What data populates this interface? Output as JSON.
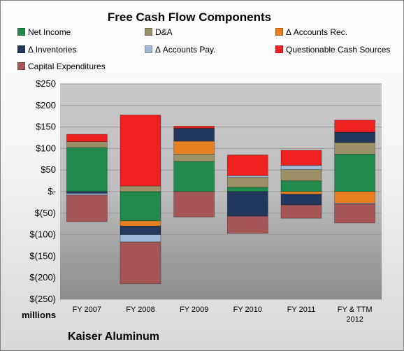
{
  "chart_data": {
    "type": "bar",
    "stacked": true,
    "title": "Free Cash Flow Components",
    "units_label": "millions",
    "footer": "Kaiser Aluminum",
    "ylim": [
      -250,
      250
    ],
    "ytick_values": [
      250,
      200,
      150,
      100,
      50,
      0,
      -50,
      -100,
      -150,
      -200,
      -250
    ],
    "ytick_labels": [
      "$250",
      "$200",
      "$150",
      "$100",
      "$50",
      "$-",
      "$(50)",
      "$(100)",
      "$(150)",
      "$(200)",
      "$(250)"
    ],
    "categories": [
      [
        "FY 2007"
      ],
      [
        "FY 2008"
      ],
      [
        "FY 2009"
      ],
      [
        "FY 2010"
      ],
      [
        "FY 2011"
      ],
      [
        "FY & TTM",
        "2012"
      ]
    ],
    "legend_position": "top",
    "series": [
      {
        "name": "Net Income",
        "color": "#1f8a4c",
        "values": [
          102,
          -68,
          70,
          10,
          25,
          87
        ]
      },
      {
        "name": "D&A",
        "color": "#9c9067",
        "values": [
          14,
          13,
          17,
          23,
          26,
          27
        ]
      },
      {
        "name": "Δ Accounts Rec.",
        "color": "#e88020",
        "values": [
          0,
          -12,
          30,
          0,
          -6,
          -27
        ]
      },
      {
        "name": "Δ Inventories",
        "color": "#22385c",
        "values": [
          -4,
          -20,
          30,
          -57,
          -25,
          24
        ]
      },
      {
        "name": "Δ Accounts Pay.",
        "color": "#9fb8d8",
        "values": [
          -4,
          -17,
          0,
          4,
          10,
          -2
        ]
      },
      {
        "name": "Questionable Cash Sources",
        "color": "#ee2020",
        "values": [
          17,
          165,
          5,
          48,
          35,
          28
        ]
      },
      {
        "name": "Capital Expenditures",
        "color": "#a65656",
        "values": [
          -62,
          -97,
          -59,
          -40,
          -31,
          -44
        ]
      }
    ]
  }
}
